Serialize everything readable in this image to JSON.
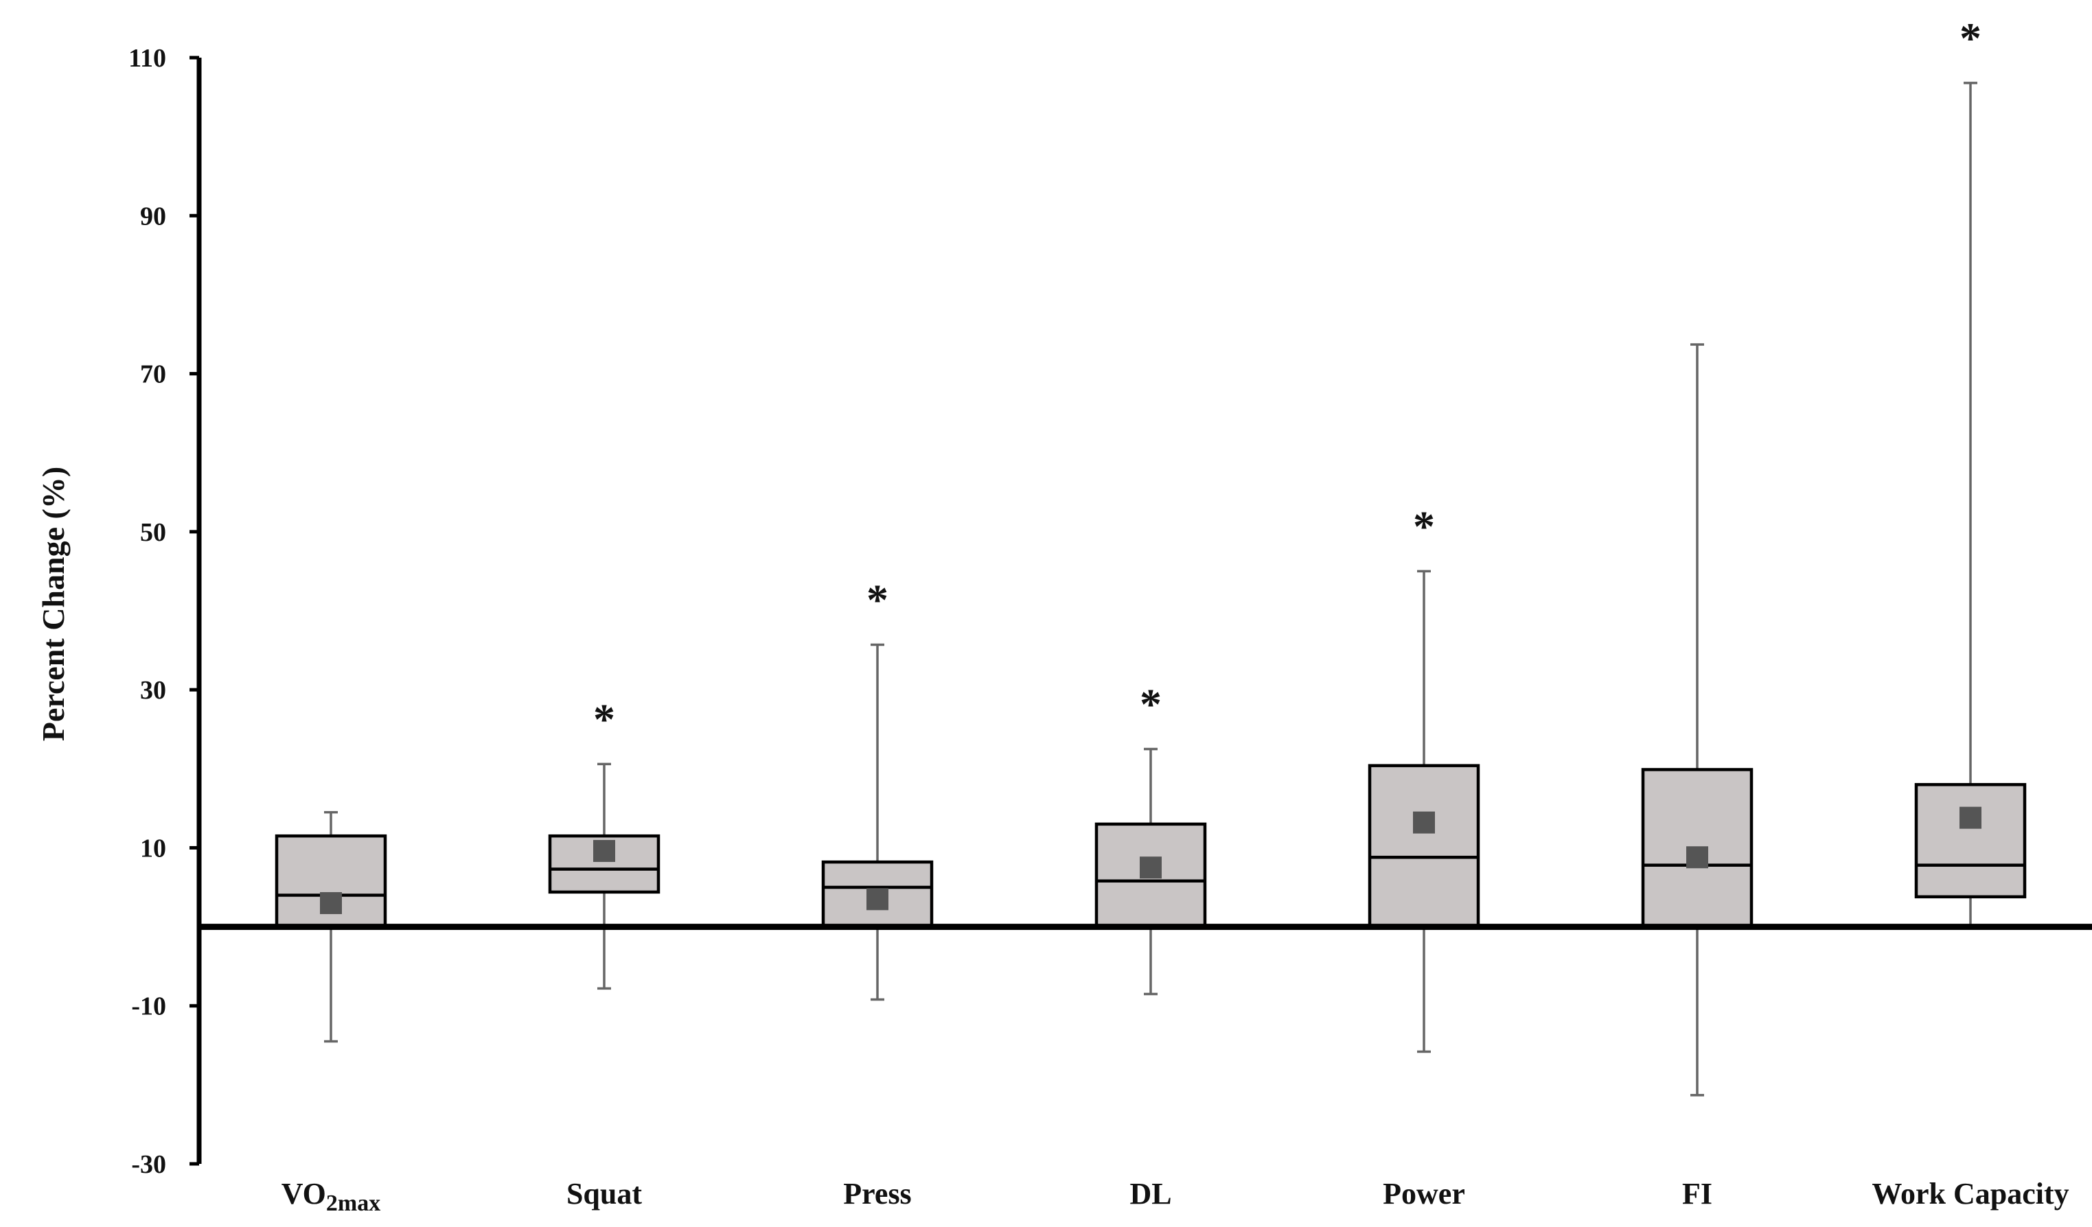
{
  "chart_data": {
    "type": "boxplot",
    "ylabel": "Percent Change (%)",
    "xlabel": "",
    "ylim": [
      -30,
      110
    ],
    "yticks": [
      -30,
      -10,
      10,
      30,
      50,
      70,
      90,
      110
    ],
    "ytick_labels": [
      "-30",
      "-10",
      "10",
      "30",
      "50",
      "70",
      "90",
      "110"
    ],
    "categories": [
      {
        "main": "VO",
        "sub": "2max"
      },
      {
        "main": "Squat",
        "sub": ""
      },
      {
        "main": "Press",
        "sub": ""
      },
      {
        "main": "DL",
        "sub": ""
      },
      {
        "main": "Power",
        "sub": ""
      },
      {
        "main": "FI",
        "sub": ""
      },
      {
        "main": "Work Capacity",
        "sub": ""
      }
    ],
    "boxes": [
      {
        "min": -14.5,
        "q1": 0,
        "median": 4.0,
        "q3": 11.5,
        "max": 14.5,
        "mean": 3.0,
        "significant": false
      },
      {
        "min": -7.8,
        "q1": 4.4,
        "median": 7.3,
        "q3": 11.5,
        "max": 20.6,
        "mean": 9.6,
        "significant": true
      },
      {
        "min": -9.2,
        "q1": 0,
        "median": 5.0,
        "q3": 8.2,
        "max": 35.7,
        "mean": 3.5,
        "significant": true
      },
      {
        "min": -8.5,
        "q1": 0,
        "median": 5.8,
        "q3": 13.0,
        "max": 22.5,
        "mean": 7.5,
        "significant": true
      },
      {
        "min": -15.8,
        "q1": 0,
        "median": 8.8,
        "q3": 20.4,
        "max": 45.0,
        "mean": 13.2,
        "significant": true
      },
      {
        "min": -21.3,
        "q1": 0,
        "median": 7.8,
        "q3": 19.9,
        "max": 73.7,
        "mean": 8.8,
        "significant": false
      },
      {
        "min": 0,
        "q1": 3.8,
        "median": 7.8,
        "q3": 18.0,
        "max": 106.8,
        "mean": 13.8,
        "significant": true
      }
    ],
    "significance_marker": "*",
    "colors": {
      "box_fill": "#c9c5c5",
      "mean_marker": "#555555",
      "whisker": "#666666",
      "axis": "#000000"
    }
  }
}
